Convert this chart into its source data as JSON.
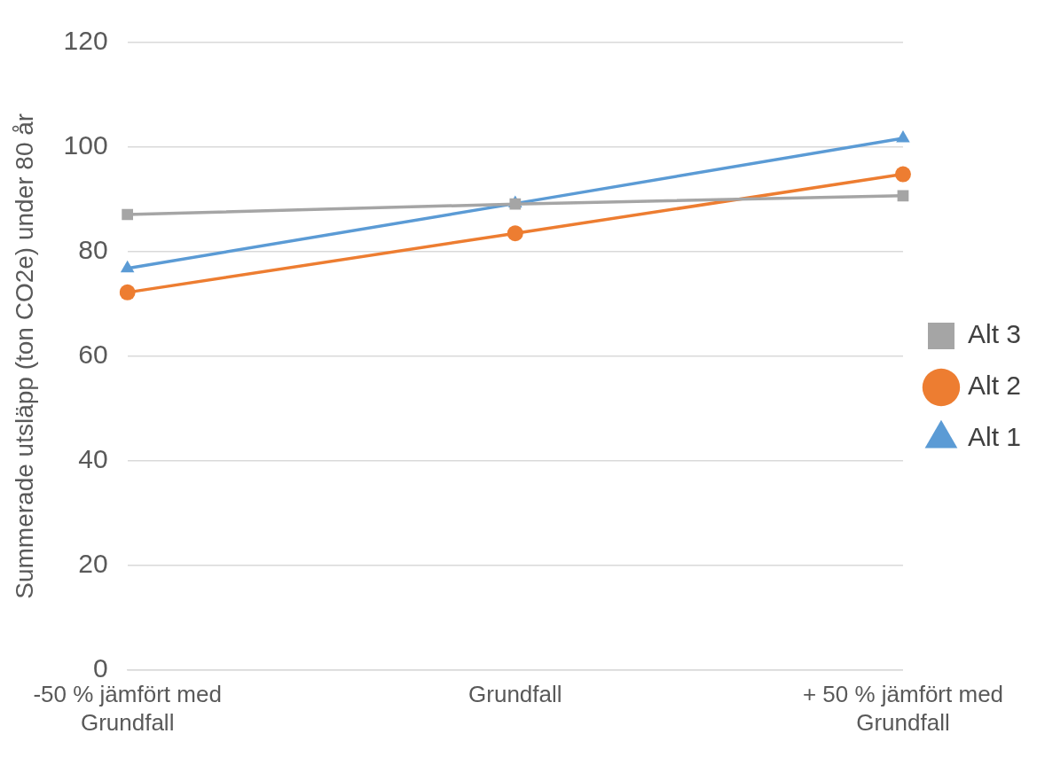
{
  "chart_data": {
    "type": "line",
    "ylabel": "Summerade utsläpp (ton CO2e) under 80 år",
    "categories": [
      "-50 % jämfört med Grundfall",
      "Grundfall",
      "+ 50 % jämfört med Grundfall"
    ],
    "series": [
      {
        "name": "Alt 1",
        "color": "#5b9bd5",
        "marker": "triangle",
        "values": [
          76.8,
          89.2,
          101.7
        ]
      },
      {
        "name": "Alt 2",
        "color": "#ed7d31",
        "marker": "circle",
        "values": [
          72.2,
          83.5,
          94.8
        ]
      },
      {
        "name": "Alt 3",
        "color": "#a5a5a5",
        "marker": "square",
        "values": [
          87.1,
          89.1,
          90.7
        ]
      }
    ],
    "ylim": [
      0,
      120
    ],
    "yticks": [
      0,
      20,
      40,
      60,
      80,
      100,
      120
    ],
    "grid": "y",
    "legend": "right"
  }
}
